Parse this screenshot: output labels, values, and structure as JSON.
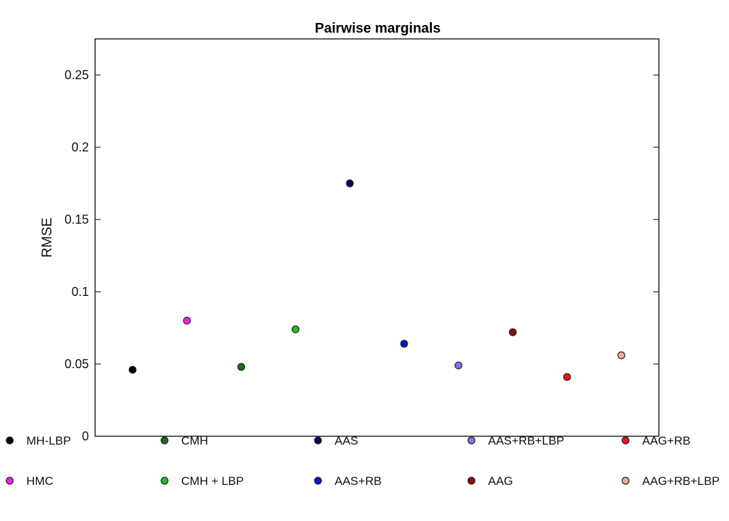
{
  "chart_data": {
    "type": "scatter",
    "title": "Pairwise marginals",
    "xlabel": "",
    "ylabel": "RMSE",
    "ylim": [
      0,
      0.275
    ],
    "yticks": [
      "0",
      "0.05",
      "0.1",
      "0.15",
      "0.2",
      "0.25"
    ],
    "grid": false,
    "legend_position": "bottom",
    "series": [
      {
        "name": "MH-LBP",
        "color": "#000000",
        "value": 0.046
      },
      {
        "name": "HMC",
        "color": "#ee22ee",
        "value": 0.08
      },
      {
        "name": "CMH",
        "color": "#136f13",
        "value": 0.048
      },
      {
        "name": "CMH + LBP",
        "color": "#22bb22",
        "value": 0.074
      },
      {
        "name": "AAS",
        "color": "#000060",
        "value": 0.175
      },
      {
        "name": "AAS+RB",
        "color": "#1111cc",
        "value": 0.064
      },
      {
        "name": "AAS+RB+LBP",
        "color": "#7878ee",
        "value": 0.049
      },
      {
        "name": "AAG",
        "color": "#8c0e0e",
        "value": 0.072
      },
      {
        "name": "AAG+RB",
        "color": "#ee1111",
        "value": 0.041
      },
      {
        "name": "AAG+RB+LBP",
        "color": "#f3a8a0",
        "value": 0.056
      }
    ]
  }
}
